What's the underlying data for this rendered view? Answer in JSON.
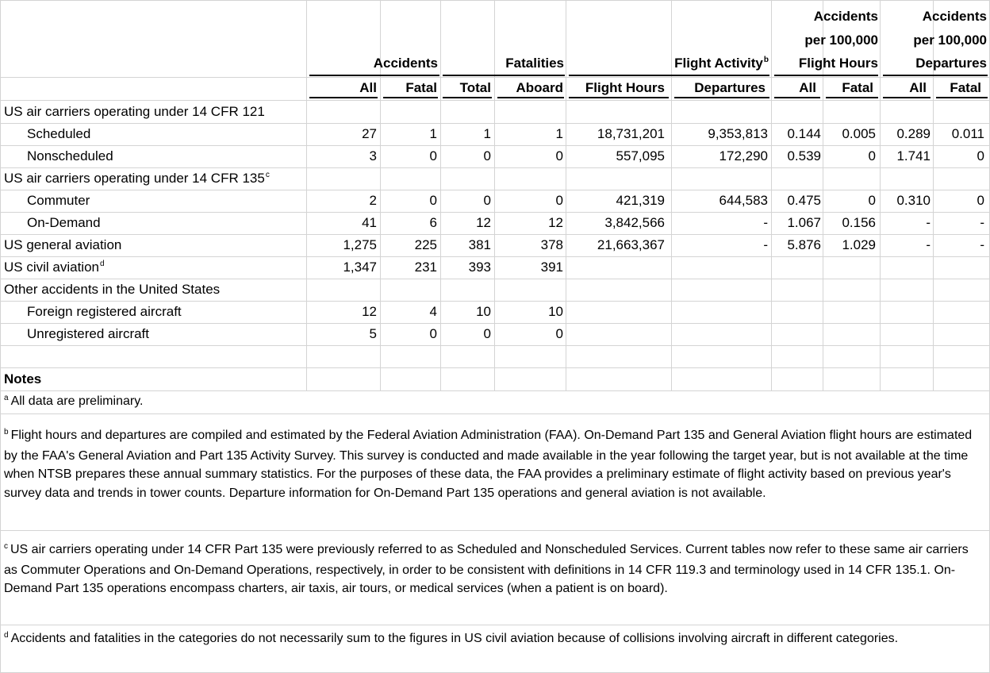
{
  "header": {
    "accidents": "Accidents",
    "fatalities": "Fatalities",
    "flight_activity": "Flight Activity",
    "flight_activity_sup": "b",
    "per_hours_line1": "Accidents",
    "per_hours_line2": "per 100,000",
    "per_hours_line3": "Flight Hours",
    "per_dep_line1": "Accidents",
    "per_dep_line2": "per 100,000",
    "per_dep_line3": "Departures"
  },
  "subheader": [
    "All",
    "Fatal",
    "Total",
    "Aboard",
    "Flight Hours",
    "Departures",
    "All",
    "Fatal",
    "All",
    "Fatal"
  ],
  "rows": [
    {
      "label": "US air carriers operating under 14 CFR 121",
      "sup": "",
      "indent": false,
      "values": [
        "",
        "",
        "",
        "",
        "",
        "",
        "",
        "",
        "",
        ""
      ]
    },
    {
      "label": "Scheduled",
      "sup": "",
      "indent": true,
      "values": [
        "27",
        "1",
        "1",
        "1",
        "18,731,201",
        "9,353,813",
        "0.144",
        "0.005",
        "0.289",
        "0.011"
      ]
    },
    {
      "label": "Nonscheduled",
      "sup": "",
      "indent": true,
      "values": [
        "3",
        "0",
        "0",
        "0",
        "557,095",
        "172,290",
        "0.539",
        "0",
        "1.741",
        "0"
      ]
    },
    {
      "label": "US air carriers operating under 14 CFR 135",
      "sup": "c",
      "indent": false,
      "values": [
        "",
        "",
        "",
        "",
        "",
        "",
        "",
        "",
        "",
        ""
      ]
    },
    {
      "label": "Commuter",
      "sup": "",
      "indent": true,
      "values": [
        "2",
        "0",
        "0",
        "0",
        "421,319",
        "644,583",
        "0.475",
        "0",
        "0.310",
        "0"
      ]
    },
    {
      "label": "On-Demand",
      "sup": "",
      "indent": true,
      "values": [
        "41",
        "6",
        "12",
        "12",
        "3,842,566",
        "-",
        "1.067",
        "0.156",
        "-",
        "-"
      ]
    },
    {
      "label": "US general aviation",
      "sup": "",
      "indent": false,
      "values": [
        "1,275",
        "225",
        "381",
        "378",
        "21,663,367",
        "-",
        "5.876",
        "1.029",
        "-",
        "-"
      ]
    },
    {
      "label": "US civil aviation",
      "sup": "d",
      "indent": false,
      "values": [
        "1,347",
        "231",
        "393",
        "391",
        "",
        "",
        "",
        "",
        "",
        ""
      ]
    },
    {
      "label": "Other accidents in the United States",
      "sup": "",
      "indent": false,
      "values": [
        "",
        "",
        "",
        "",
        "",
        "",
        "",
        "",
        "",
        ""
      ]
    },
    {
      "label": "Foreign registered aircraft",
      "sup": "",
      "indent": true,
      "values": [
        "12",
        "4",
        "10",
        "10",
        "",
        "",
        "",
        "",
        "",
        ""
      ]
    },
    {
      "label": "Unregistered aircraft",
      "sup": "",
      "indent": true,
      "values": [
        "5",
        "0",
        "0",
        "0",
        "",
        "",
        "",
        "",
        "",
        ""
      ]
    }
  ],
  "notes": {
    "title": "Notes",
    "items": [
      {
        "mark": "a",
        "text": "All data are preliminary."
      },
      {
        "mark": "b",
        "text": "Flight hours and departures are compiled and estimated by the Federal Aviation Administration (FAA). On-Demand Part 135 and General Aviation flight hours are estimated by the FAA's General Aviation and Part 135 Activity Survey. This survey is conducted and made available in the year following the target year, but is not available at the time when NTSB prepares these annual summary statistics. For the purposes of these data, the FAA provides a preliminary estimate of flight activity based on previous year's survey data and trends in tower counts. Departure information for On-Demand Part 135 operations and general aviation is not available."
      },
      {
        "mark": "c",
        "text": "US air carriers operating under 14 CFR Part 135 were previously referred to as Scheduled and Nonscheduled Services. Current tables now refer to these same air carriers as Commuter Operations and On-Demand Operations, respectively, in order to be consistent with definitions in 14 CFR 119.3 and terminology used in 14 CFR 135.1. On-Demand Part 135 operations encompass charters, air taxis, air tours, or medical services (when a patient is on board)."
      },
      {
        "mark": "d",
        "text": "Accidents and fatalities in the categories do not necessarily sum to the figures in US civil aviation because of collisions involving aircraft in different categories."
      }
    ]
  }
}
